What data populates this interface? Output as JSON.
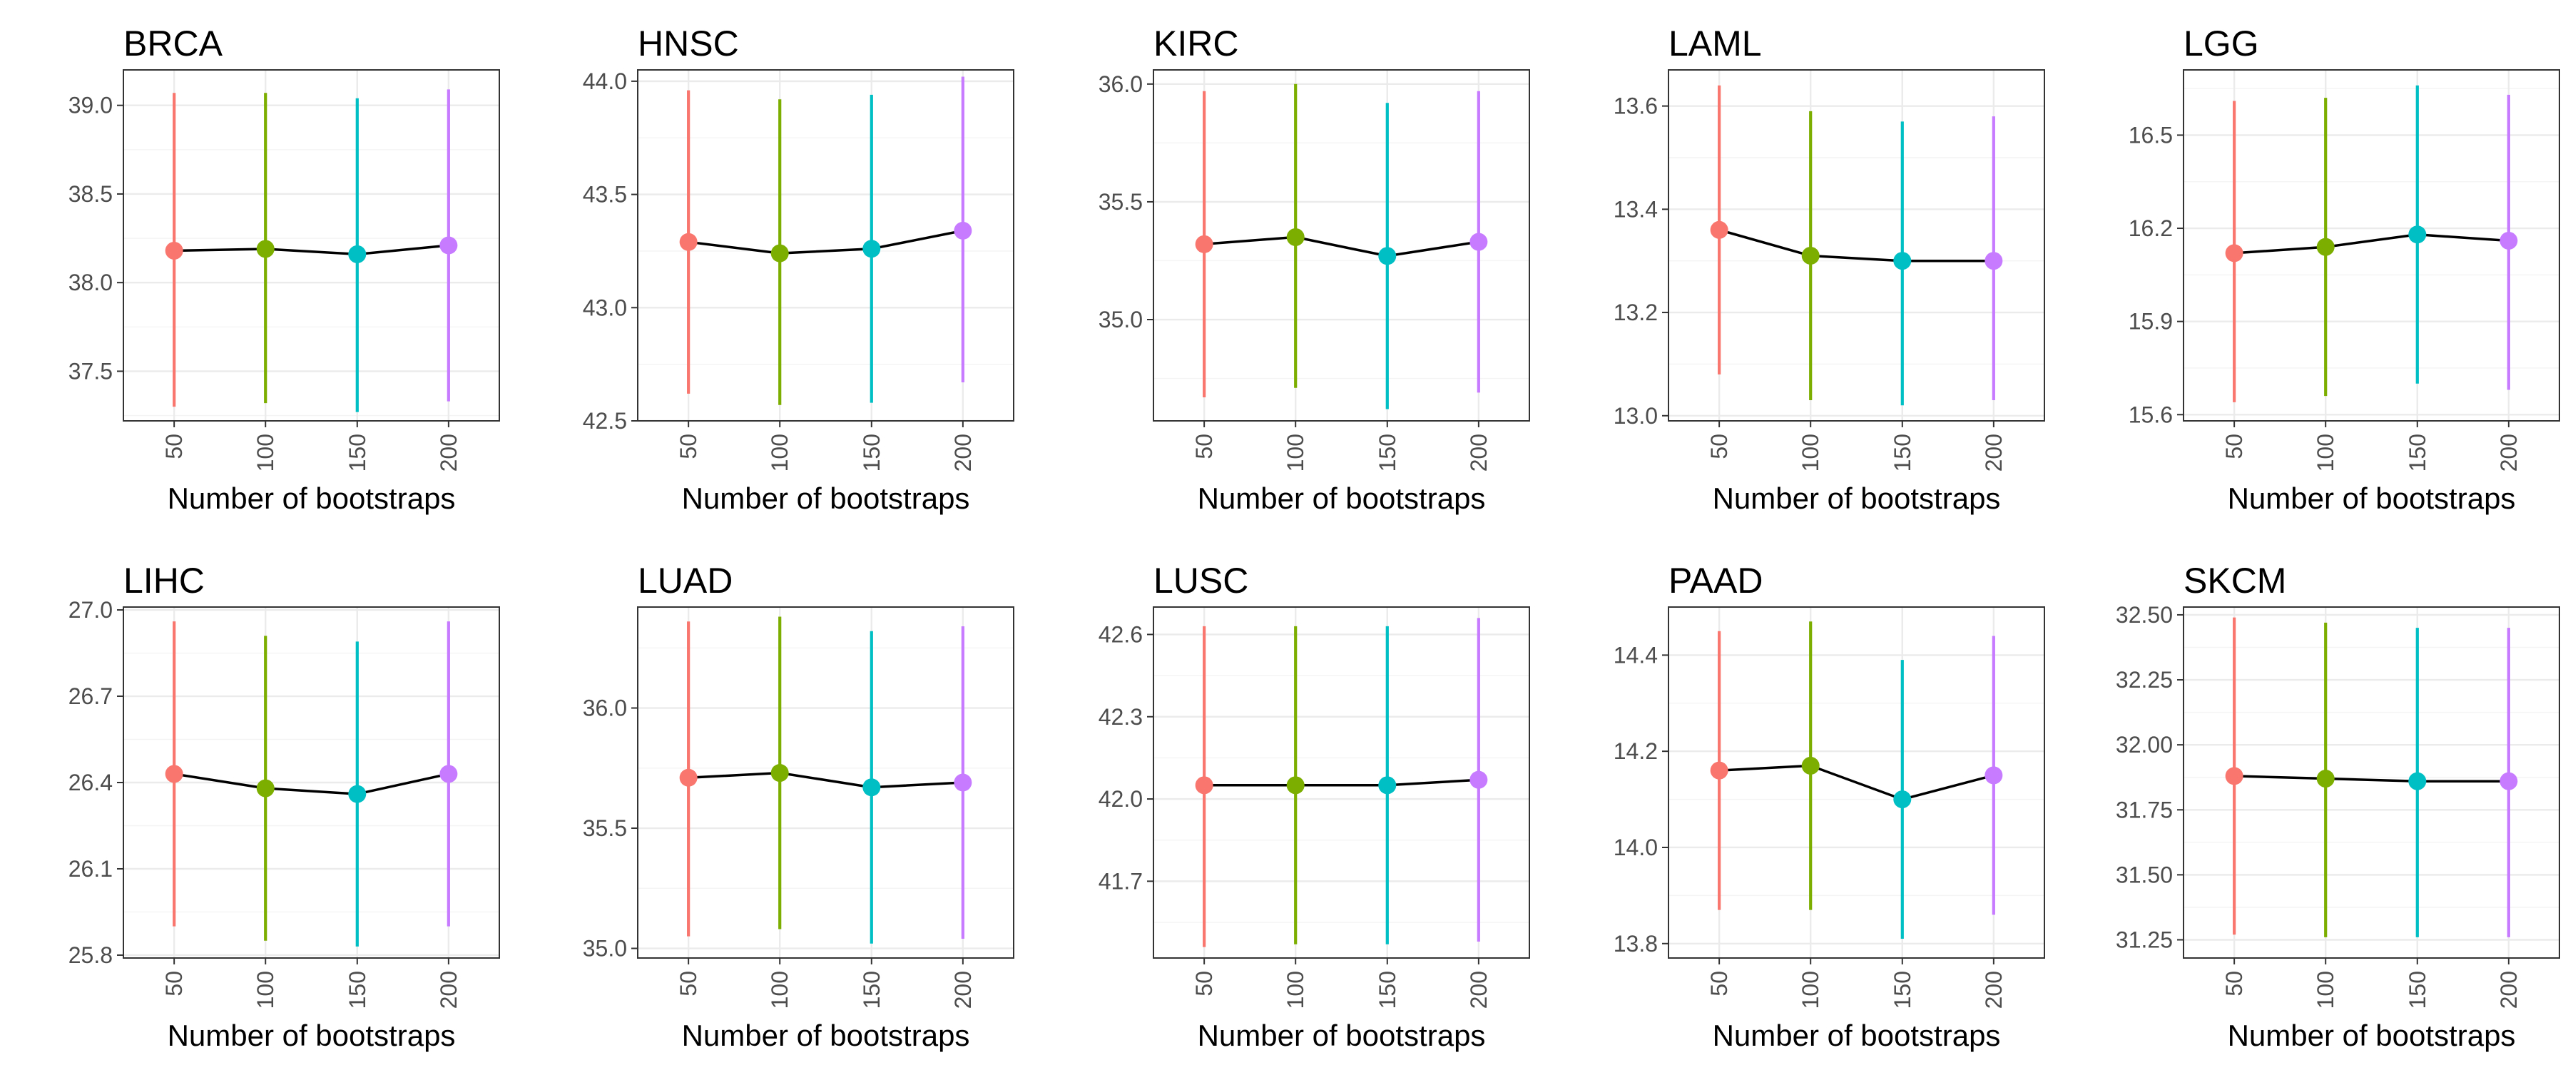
{
  "colors": {
    "50": "#F8766D",
    "100": "#7CAE00",
    "150": "#00BFC4",
    "200": "#C77CFF"
  },
  "chart_data": [
    {
      "type": "line",
      "title": "BRCA",
      "xlabel": "Number of bootstraps",
      "ylabel": "",
      "categories": [
        "50",
        "100",
        "150",
        "200"
      ],
      "values": [
        38.18,
        38.19,
        38.16,
        38.21
      ],
      "lower": [
        37.3,
        37.32,
        37.27,
        37.33
      ],
      "upper": [
        39.07,
        39.07,
        39.04,
        39.09
      ],
      "ylim": [
        37.22,
        39.2
      ],
      "yticks": [
        "37.5",
        "38.0",
        "38.5",
        "39.0"
      ],
      "grid": true
    },
    {
      "type": "line",
      "title": "HNSC",
      "xlabel": "Number of bootstraps",
      "ylabel": "",
      "categories": [
        "50",
        "100",
        "150",
        "200"
      ],
      "values": [
        43.29,
        43.24,
        43.26,
        43.34
      ],
      "lower": [
        42.62,
        42.57,
        42.58,
        42.67
      ],
      "upper": [
        43.96,
        43.92,
        43.94,
        44.02
      ],
      "ylim": [
        42.5,
        44.05
      ],
      "yticks": [
        "42.5",
        "43.0",
        "43.5",
        "44.0"
      ],
      "grid": true
    },
    {
      "type": "line",
      "title": "KIRC",
      "xlabel": "Number of bootstraps",
      "ylabel": "",
      "categories": [
        "50",
        "100",
        "150",
        "200"
      ],
      "values": [
        35.32,
        35.35,
        35.27,
        35.33
      ],
      "lower": [
        34.67,
        34.71,
        34.62,
        34.69
      ],
      "upper": [
        35.97,
        36.0,
        35.92,
        35.97
      ],
      "ylim": [
        34.57,
        36.06
      ],
      "yticks": [
        "35.0",
        "35.5",
        "36.0"
      ],
      "grid": true
    },
    {
      "type": "line",
      "title": "LAML",
      "xlabel": "Number of bootstraps",
      "ylabel": "",
      "categories": [
        "50",
        "100",
        "150",
        "200"
      ],
      "values": [
        13.36,
        13.31,
        13.3,
        13.3
      ],
      "lower": [
        13.08,
        13.03,
        13.02,
        13.03
      ],
      "upper": [
        13.64,
        13.59,
        13.57,
        13.58
      ],
      "ylim": [
        12.99,
        13.67
      ],
      "yticks": [
        "13.0",
        "13.2",
        "13.4",
        "13.6"
      ],
      "grid": true
    },
    {
      "type": "line",
      "title": "LGG",
      "xlabel": "Number of bootstraps",
      "ylabel": "",
      "categories": [
        "50",
        "100",
        "150",
        "200"
      ],
      "values": [
        16.12,
        16.14,
        16.18,
        16.16
      ],
      "lower": [
        15.64,
        15.66,
        15.7,
        15.68
      ],
      "upper": [
        16.61,
        16.62,
        16.66,
        16.63
      ],
      "ylim": [
        15.58,
        16.71
      ],
      "yticks": [
        "15.6",
        "15.9",
        "16.2",
        "16.5"
      ],
      "grid": true
    },
    {
      "type": "line",
      "title": "LIHC",
      "xlabel": "Number of bootstraps",
      "ylabel": "",
      "categories": [
        "50",
        "100",
        "150",
        "200"
      ],
      "values": [
        26.43,
        26.38,
        26.36,
        26.43
      ],
      "lower": [
        25.9,
        25.85,
        25.83,
        25.9
      ],
      "upper": [
        26.96,
        26.91,
        26.89,
        26.96
      ],
      "ylim": [
        25.79,
        27.01
      ],
      "yticks": [
        "25.8",
        "26.1",
        "26.4",
        "26.7",
        "27.0"
      ],
      "grid": true
    },
    {
      "type": "line",
      "title": "LUAD",
      "xlabel": "Number of bootstraps",
      "ylabel": "",
      "categories": [
        "50",
        "100",
        "150",
        "200"
      ],
      "values": [
        35.71,
        35.73,
        35.67,
        35.69
      ],
      "lower": [
        35.05,
        35.08,
        35.02,
        35.04
      ],
      "upper": [
        36.36,
        36.38,
        36.32,
        36.34
      ],
      "ylim": [
        34.96,
        36.42
      ],
      "yticks": [
        "35.0",
        "35.5",
        "36.0"
      ],
      "grid": true
    },
    {
      "type": "line",
      "title": "LUSC",
      "xlabel": "Number of bootstraps",
      "ylabel": "",
      "categories": [
        "50",
        "100",
        "150",
        "200"
      ],
      "values": [
        42.05,
        42.05,
        42.05,
        42.07
      ],
      "lower": [
        41.46,
        41.47,
        41.47,
        41.48
      ],
      "upper": [
        42.63,
        42.63,
        42.63,
        42.66
      ],
      "ylim": [
        41.42,
        42.7
      ],
      "yticks": [
        "41.7",
        "42.0",
        "42.3",
        "42.6"
      ],
      "grid": true
    },
    {
      "type": "line",
      "title": "PAAD",
      "xlabel": "Number of bootstraps",
      "ylabel": "",
      "categories": [
        "50",
        "100",
        "150",
        "200"
      ],
      "values": [
        14.16,
        14.17,
        14.1,
        14.15
      ],
      "lower": [
        13.87,
        13.87,
        13.81,
        13.86
      ],
      "upper": [
        14.45,
        14.47,
        14.39,
        14.44
      ],
      "ylim": [
        13.77,
        14.5
      ],
      "yticks": [
        "13.8",
        "14.0",
        "14.2",
        "14.4"
      ],
      "grid": true
    },
    {
      "type": "line",
      "title": "SKCM",
      "xlabel": "Number of bootstraps",
      "ylabel": "",
      "categories": [
        "50",
        "100",
        "150",
        "200"
      ],
      "values": [
        31.88,
        31.87,
        31.86,
        31.86
      ],
      "lower": [
        31.27,
        31.26,
        31.26,
        31.26
      ],
      "upper": [
        32.49,
        32.47,
        32.45,
        32.45
      ],
      "ylim": [
        31.18,
        32.53
      ],
      "yticks": [
        "31.25",
        "31.50",
        "31.75",
        "32.00",
        "32.25",
        "32.50"
      ],
      "grid": true
    }
  ]
}
